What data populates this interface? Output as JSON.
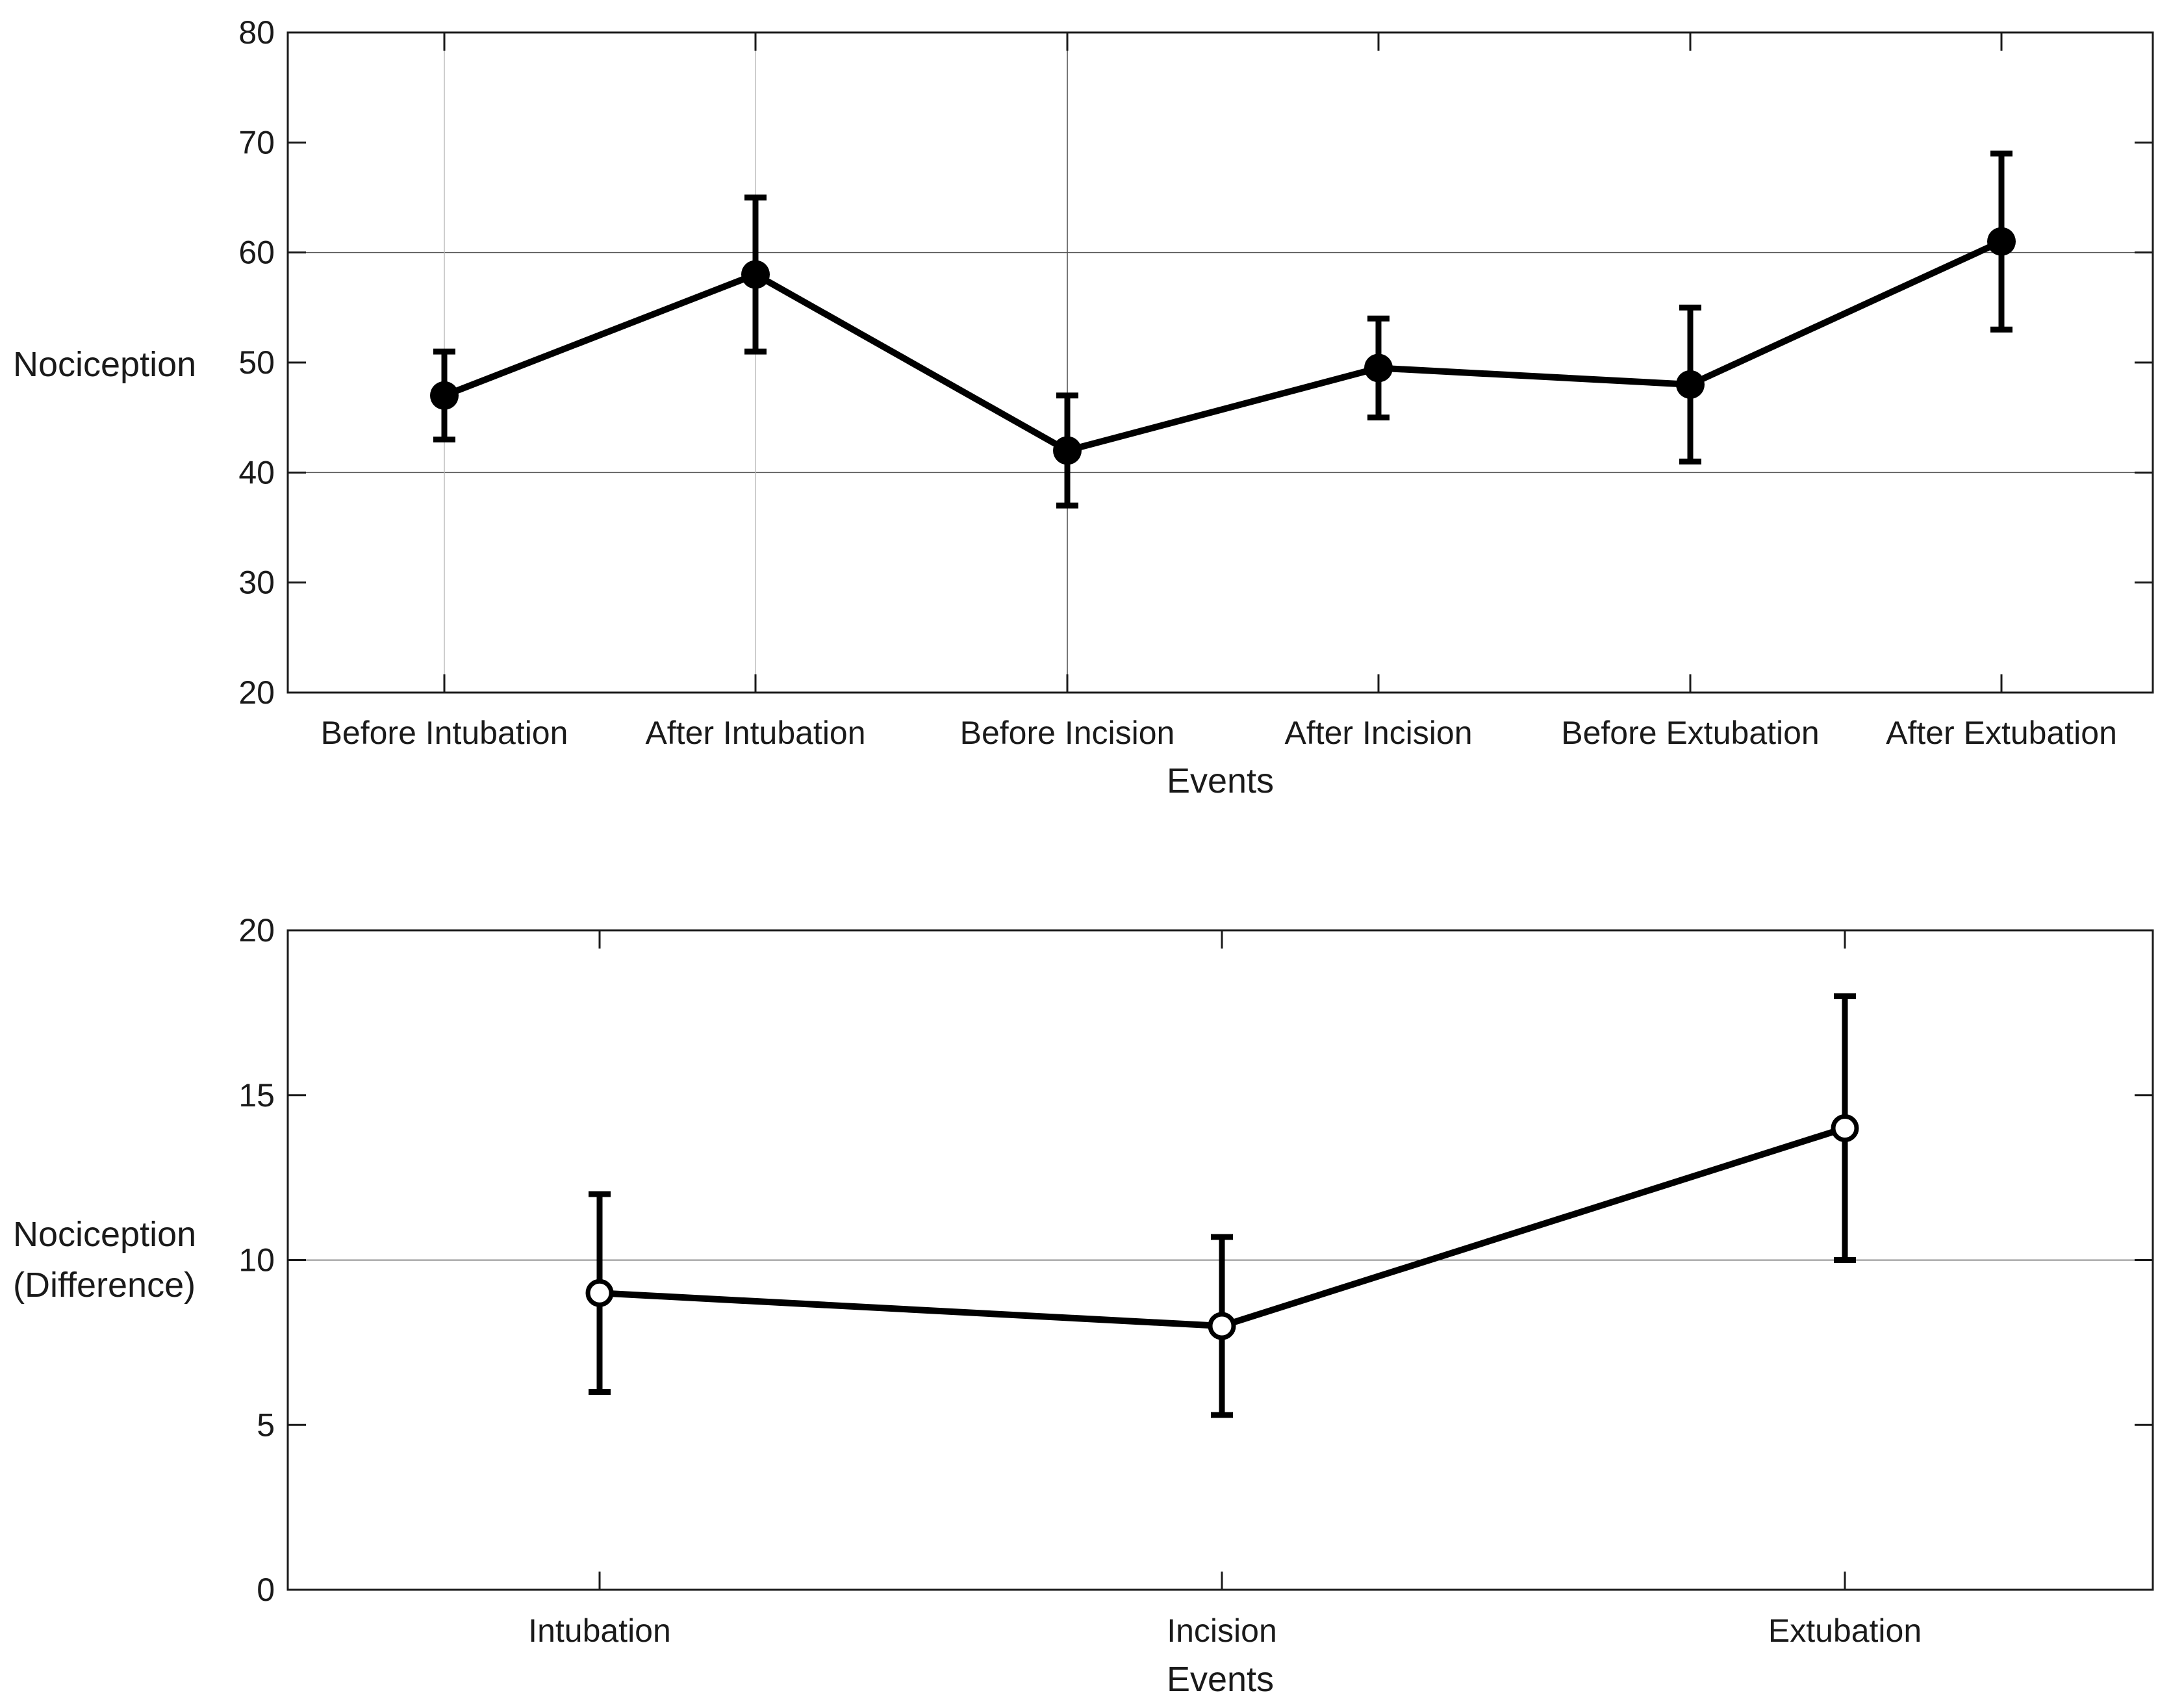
{
  "chart_data": [
    {
      "type": "line",
      "title": "",
      "xlabel": "Events",
      "ylabel": "Nociception",
      "ylim": [
        20,
        80
      ],
      "yticks": [
        20,
        30,
        40,
        50,
        60,
        70,
        80
      ],
      "categories": [
        "Before Intubation",
        "After Intubation",
        "Before Incision",
        "After Incision",
        "Before Extubation",
        "After Extubation"
      ],
      "series": [
        {
          "name": "Nociception",
          "marker": "filled-circle",
          "values": [
            47,
            58,
            42,
            49.5,
            48,
            61
          ],
          "error_low": [
            43,
            51,
            37,
            45,
            41,
            53
          ],
          "error_high": [
            51,
            65,
            47,
            54,
            55,
            69
          ]
        }
      ],
      "grid": {
        "horizontal": [
          40,
          60
        ],
        "vertical_categories": [
          0,
          1,
          2
        ]
      }
    },
    {
      "type": "line",
      "title": "",
      "xlabel": "Events",
      "ylabel": [
        "Nociception",
        "(Difference)"
      ],
      "ylim": [
        0,
        20
      ],
      "yticks": [
        0,
        5,
        10,
        15,
        20
      ],
      "categories": [
        "Intubation",
        "Incision",
        "Extubation"
      ],
      "series": [
        {
          "name": "Nociception (Difference)",
          "marker": "open-circle",
          "values": [
            9,
            8,
            14
          ],
          "error_low": [
            6,
            5.3,
            10
          ],
          "error_high": [
            12,
            10.7,
            18
          ]
        }
      ],
      "grid": {
        "horizontal": [
          10
        ],
        "vertical_categories": []
      }
    }
  ]
}
